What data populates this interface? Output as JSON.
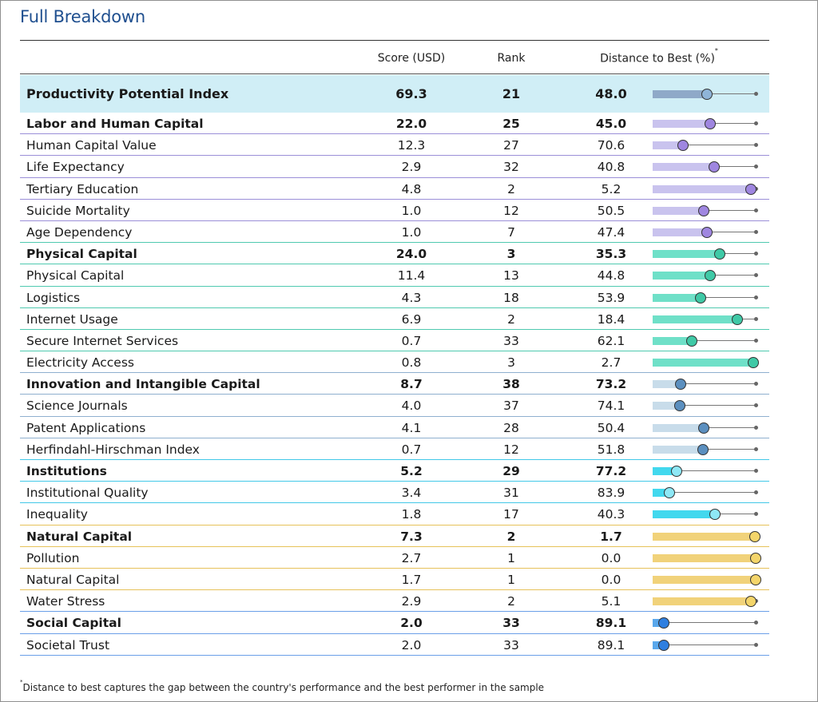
{
  "title": "Full Breakdown",
  "headers": {
    "score": "Score (USD)",
    "rank": "Rank",
    "distance": "Distance to Best (%)",
    "asterisk": "*"
  },
  "footnote": {
    "asterisk": "*",
    "text": "Distance to best captures the gap between the country's performance and the best performer in the sample"
  },
  "colors": {
    "index": {
      "fill": "#8fa9c8",
      "dot": "#8fb4d8",
      "row_bg": "#d0eef6"
    },
    "labor": {
      "fill": "#c9c3ee",
      "dot": "#9f86e0",
      "divider": "#9b8fd8"
    },
    "physical": {
      "fill": "#6fe0c8",
      "dot": "#3fc9a6",
      "divider": "#4fc9b0"
    },
    "innovation": {
      "fill": "#c8dcea",
      "dot": "#5b8fbf",
      "divider": "#8fb0cf"
    },
    "institutions": {
      "fill": "#42d8ee",
      "dot": "#8ee8f6",
      "divider": "#42c8e8"
    },
    "natural": {
      "fill": "#f1d27a",
      "dot": "#f4d56a",
      "divider": "#e6c25a"
    },
    "social": {
      "fill": "#5aa8ec",
      "dot": "#2f7fe0",
      "divider": "#6a9fe8"
    }
  },
  "rows": [
    {
      "label": "Productivity Potential Index",
      "score": "69.3",
      "rank": "21",
      "distance": "48.0",
      "distance_value": 48.0,
      "group": "index",
      "bold": true,
      "kind": "index"
    },
    {
      "label": "Labor and Human Capital",
      "score": "22.0",
      "rank": "25",
      "distance": "45.0",
      "distance_value": 45.0,
      "group": "labor",
      "bold": true
    },
    {
      "label": "Human Capital Value",
      "score": "12.3",
      "rank": "27",
      "distance": "70.6",
      "distance_value": 70.6,
      "group": "labor",
      "bold": false
    },
    {
      "label": "Life Expectancy",
      "score": "2.9",
      "rank": "32",
      "distance": "40.8",
      "distance_value": 40.8,
      "group": "labor",
      "bold": false
    },
    {
      "label": "Tertiary Education",
      "score": "4.8",
      "rank": "2",
      "distance": "5.2",
      "distance_value": 5.2,
      "group": "labor",
      "bold": false
    },
    {
      "label": "Suicide Mortality",
      "score": "1.0",
      "rank": "12",
      "distance": "50.5",
      "distance_value": 50.5,
      "group": "labor",
      "bold": false
    },
    {
      "label": "Age Dependency",
      "score": "1.0",
      "rank": "7",
      "distance": "47.4",
      "distance_value": 47.4,
      "group": "labor",
      "bold": false,
      "divider": true
    },
    {
      "label": "Physical Capital",
      "score": "24.0",
      "rank": "3",
      "distance": "35.3",
      "distance_value": 35.3,
      "group": "physical",
      "bold": true
    },
    {
      "label": "Physical Capital",
      "score": "11.4",
      "rank": "13",
      "distance": "44.8",
      "distance_value": 44.8,
      "group": "physical",
      "bold": false
    },
    {
      "label": "Logistics",
      "score": "4.3",
      "rank": "18",
      "distance": "53.9",
      "distance_value": 53.9,
      "group": "physical",
      "bold": false
    },
    {
      "label": "Internet Usage",
      "score": "6.9",
      "rank": "2",
      "distance": "18.4",
      "distance_value": 18.4,
      "group": "physical",
      "bold": false
    },
    {
      "label": "Secure Internet Services",
      "score": "0.7",
      "rank": "33",
      "distance": "62.1",
      "distance_value": 62.1,
      "group": "physical",
      "bold": false
    },
    {
      "label": "Electricity Access",
      "score": "0.8",
      "rank": "3",
      "distance": "2.7",
      "distance_value": 2.7,
      "group": "physical",
      "bold": false,
      "divider": true
    },
    {
      "label": "Innovation and Intangible Capital",
      "score": "8.7",
      "rank": "38",
      "distance": "73.2",
      "distance_value": 73.2,
      "group": "innovation",
      "bold": true
    },
    {
      "label": "Science Journals",
      "score": "4.0",
      "rank": "37",
      "distance": "74.1",
      "distance_value": 74.1,
      "group": "innovation",
      "bold": false
    },
    {
      "label": "Patent Applications",
      "score": "4.1",
      "rank": "28",
      "distance": "50.4",
      "distance_value": 50.4,
      "group": "innovation",
      "bold": false
    },
    {
      "label": "Herfindahl-Hirschman Index",
      "score": "0.7",
      "rank": "12",
      "distance": "51.8",
      "distance_value": 51.8,
      "group": "innovation",
      "bold": false,
      "divider": true
    },
    {
      "label": "Institutions",
      "score": "5.2",
      "rank": "29",
      "distance": "77.2",
      "distance_value": 77.2,
      "group": "institutions",
      "bold": true
    },
    {
      "label": "Institutional Quality",
      "score": "3.4",
      "rank": "31",
      "distance": "83.9",
      "distance_value": 83.9,
      "group": "institutions",
      "bold": false
    },
    {
      "label": "Inequality",
      "score": "1.8",
      "rank": "17",
      "distance": "40.3",
      "distance_value": 40.3,
      "group": "institutions",
      "bold": false,
      "divider": true
    },
    {
      "label": "Natural Capital",
      "score": "7.3",
      "rank": "2",
      "distance": "1.7",
      "distance_value": 1.7,
      "group": "natural",
      "bold": true
    },
    {
      "label": "Pollution",
      "score": "2.7",
      "rank": "1",
      "distance": "0.0",
      "distance_value": 0.0,
      "group": "natural",
      "bold": false
    },
    {
      "label": "Natural Capital",
      "score": "1.7",
      "rank": "1",
      "distance": "0.0",
      "distance_value": 0.0,
      "group": "natural",
      "bold": false
    },
    {
      "label": "Water Stress",
      "score": "2.9",
      "rank": "2",
      "distance": "5.1",
      "distance_value": 5.1,
      "group": "natural",
      "bold": false,
      "divider": true
    },
    {
      "label": "Social Capital",
      "score": "2.0",
      "rank": "33",
      "distance": "89.1",
      "distance_value": 89.1,
      "group": "social",
      "bold": true
    },
    {
      "label": "Societal Trust",
      "score": "2.0",
      "rank": "33",
      "distance": "89.1",
      "distance_value": 89.1,
      "group": "social",
      "bold": false
    }
  ]
}
